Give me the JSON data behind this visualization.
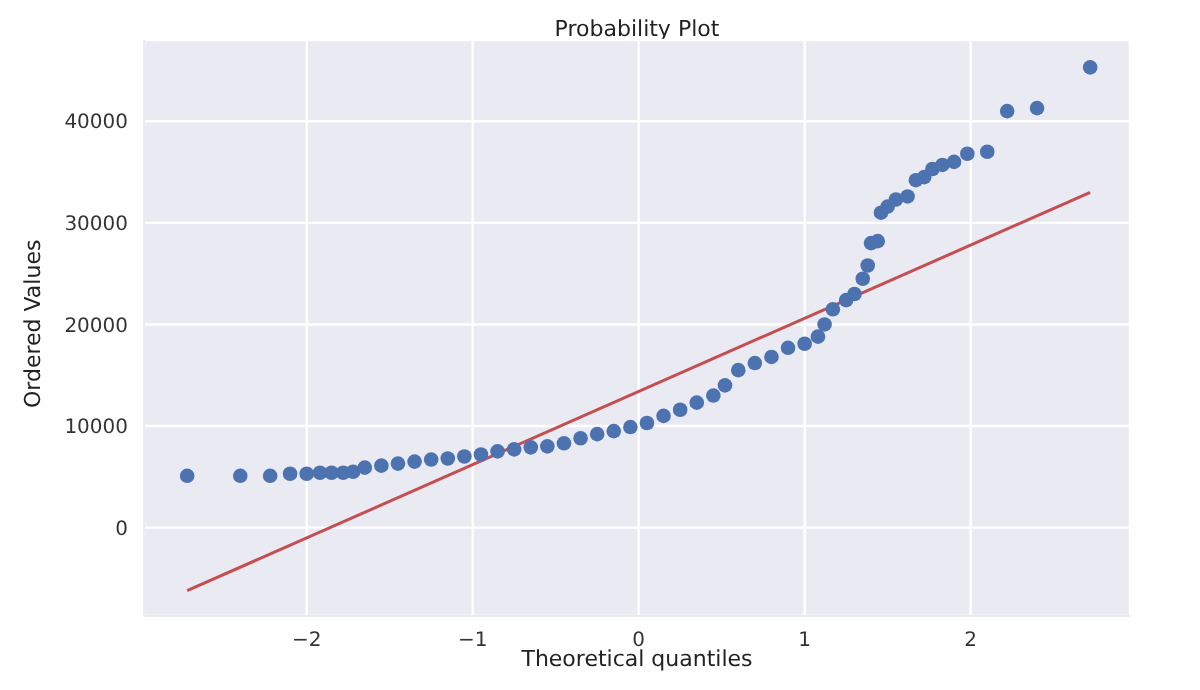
{
  "chart_data": {
    "type": "scatter",
    "title": "Probability Plot",
    "xlabel": "Theoretical quantiles",
    "ylabel": "Ordered Values",
    "xlim": [
      -2.98,
      2.96
    ],
    "ylim": [
      -8700,
      48000
    ],
    "xticks": [
      {
        "value": -2,
        "label": "−2"
      },
      {
        "value": -1,
        "label": "−1"
      },
      0,
      1,
      2
    ],
    "yticks": [
      0,
      10000,
      20000,
      30000,
      40000
    ],
    "grid": true,
    "series": [
      {
        "marker": "circle",
        "color": "#4c72b0",
        "x": [
          -2.72,
          -2.4,
          -2.22,
          -2.1,
          -2.0,
          -1.92,
          -1.85,
          -1.78,
          -1.72,
          -1.65,
          -1.55,
          -1.45,
          -1.35,
          -1.25,
          -1.15,
          -1.05,
          -0.95,
          -0.85,
          -0.75,
          -0.65,
          -0.55,
          -0.45,
          -0.35,
          -0.25,
          -0.15,
          -0.05,
          0.05,
          0.15,
          0.25,
          0.35,
          0.45,
          0.52,
          0.6,
          0.7,
          0.8,
          0.9,
          1.0,
          1.08,
          1.12,
          1.17,
          1.25,
          1.3,
          1.35,
          1.38,
          1.4,
          1.44,
          1.46,
          1.5,
          1.55,
          1.62,
          1.67,
          1.72,
          1.77,
          1.83,
          1.9,
          1.98,
          2.1,
          2.22,
          2.4,
          2.72
        ],
        "values": [
          5100,
          5100,
          5100,
          5300,
          5300,
          5400,
          5400,
          5400,
          5500,
          5900,
          6100,
          6300,
          6500,
          6700,
          6800,
          7000,
          7200,
          7500,
          7700,
          7900,
          8000,
          8300,
          8800,
          9200,
          9500,
          9900,
          10300,
          11000,
          11600,
          12300,
          13000,
          14000,
          15500,
          16200,
          16800,
          17700,
          18100,
          18800,
          20000,
          21500,
          22400,
          23000,
          24500,
          25800,
          28000,
          28200,
          31000,
          31600,
          32300,
          32600,
          34200,
          34500,
          35300,
          35700,
          36000,
          36800,
          37000,
          41000,
          41300,
          45300
        ]
      },
      {
        "type": "line",
        "color": "#c44e52",
        "x": [
          -2.72,
          2.72
        ],
        "values": [
          -6200,
          33000
        ]
      }
    ]
  }
}
